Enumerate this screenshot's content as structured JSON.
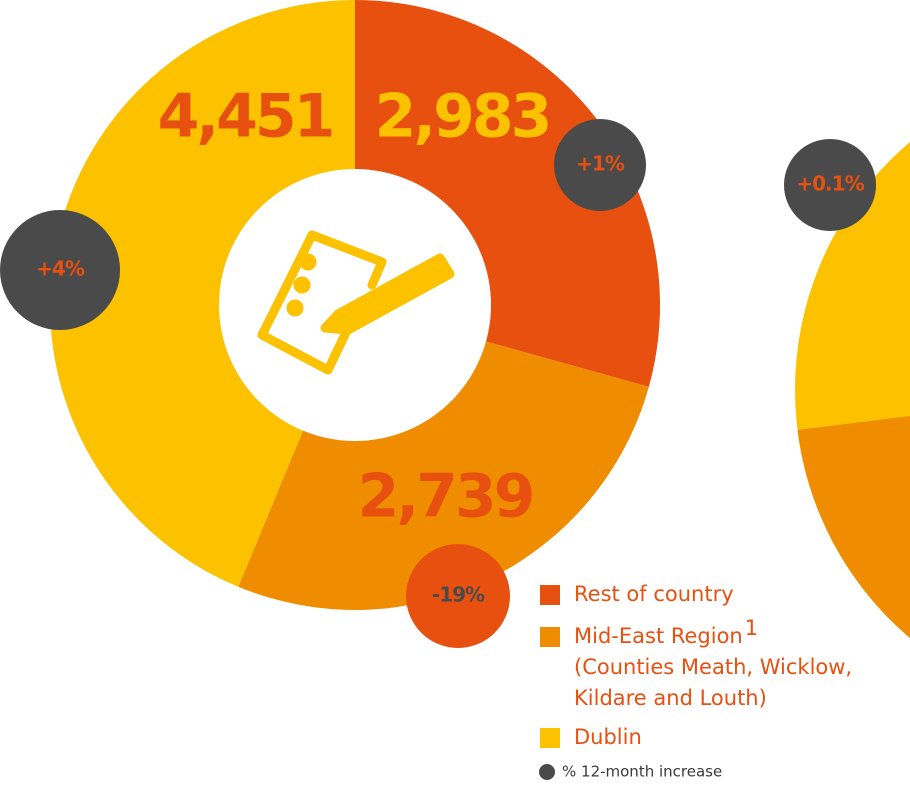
{
  "chart_data": {
    "type": "donut",
    "categories": [
      "Rest of country",
      "Mid-East Region",
      "Dublin"
    ],
    "category_footnotes": [
      null,
      "1",
      null
    ],
    "category_details": [
      null,
      [
        "(Counties Meath, Wicklow,",
        "Kildare and Louth)"
      ],
      null
    ],
    "values": [
      2983,
      2739,
      4451
    ],
    "value_labels": [
      "2,983",
      "2,739",
      "4,451"
    ],
    "colors": [
      "#e8500f",
      "#f08c00",
      "#fcc200"
    ],
    "changes": [
      1,
      -19,
      4
    ],
    "change_labels": [
      "+1%",
      "-19%",
      "+4%"
    ],
    "change_legend": "% 12-month increase",
    "neighbour_change": 0.1,
    "neighbour_change_label": "+0.1%"
  }
}
